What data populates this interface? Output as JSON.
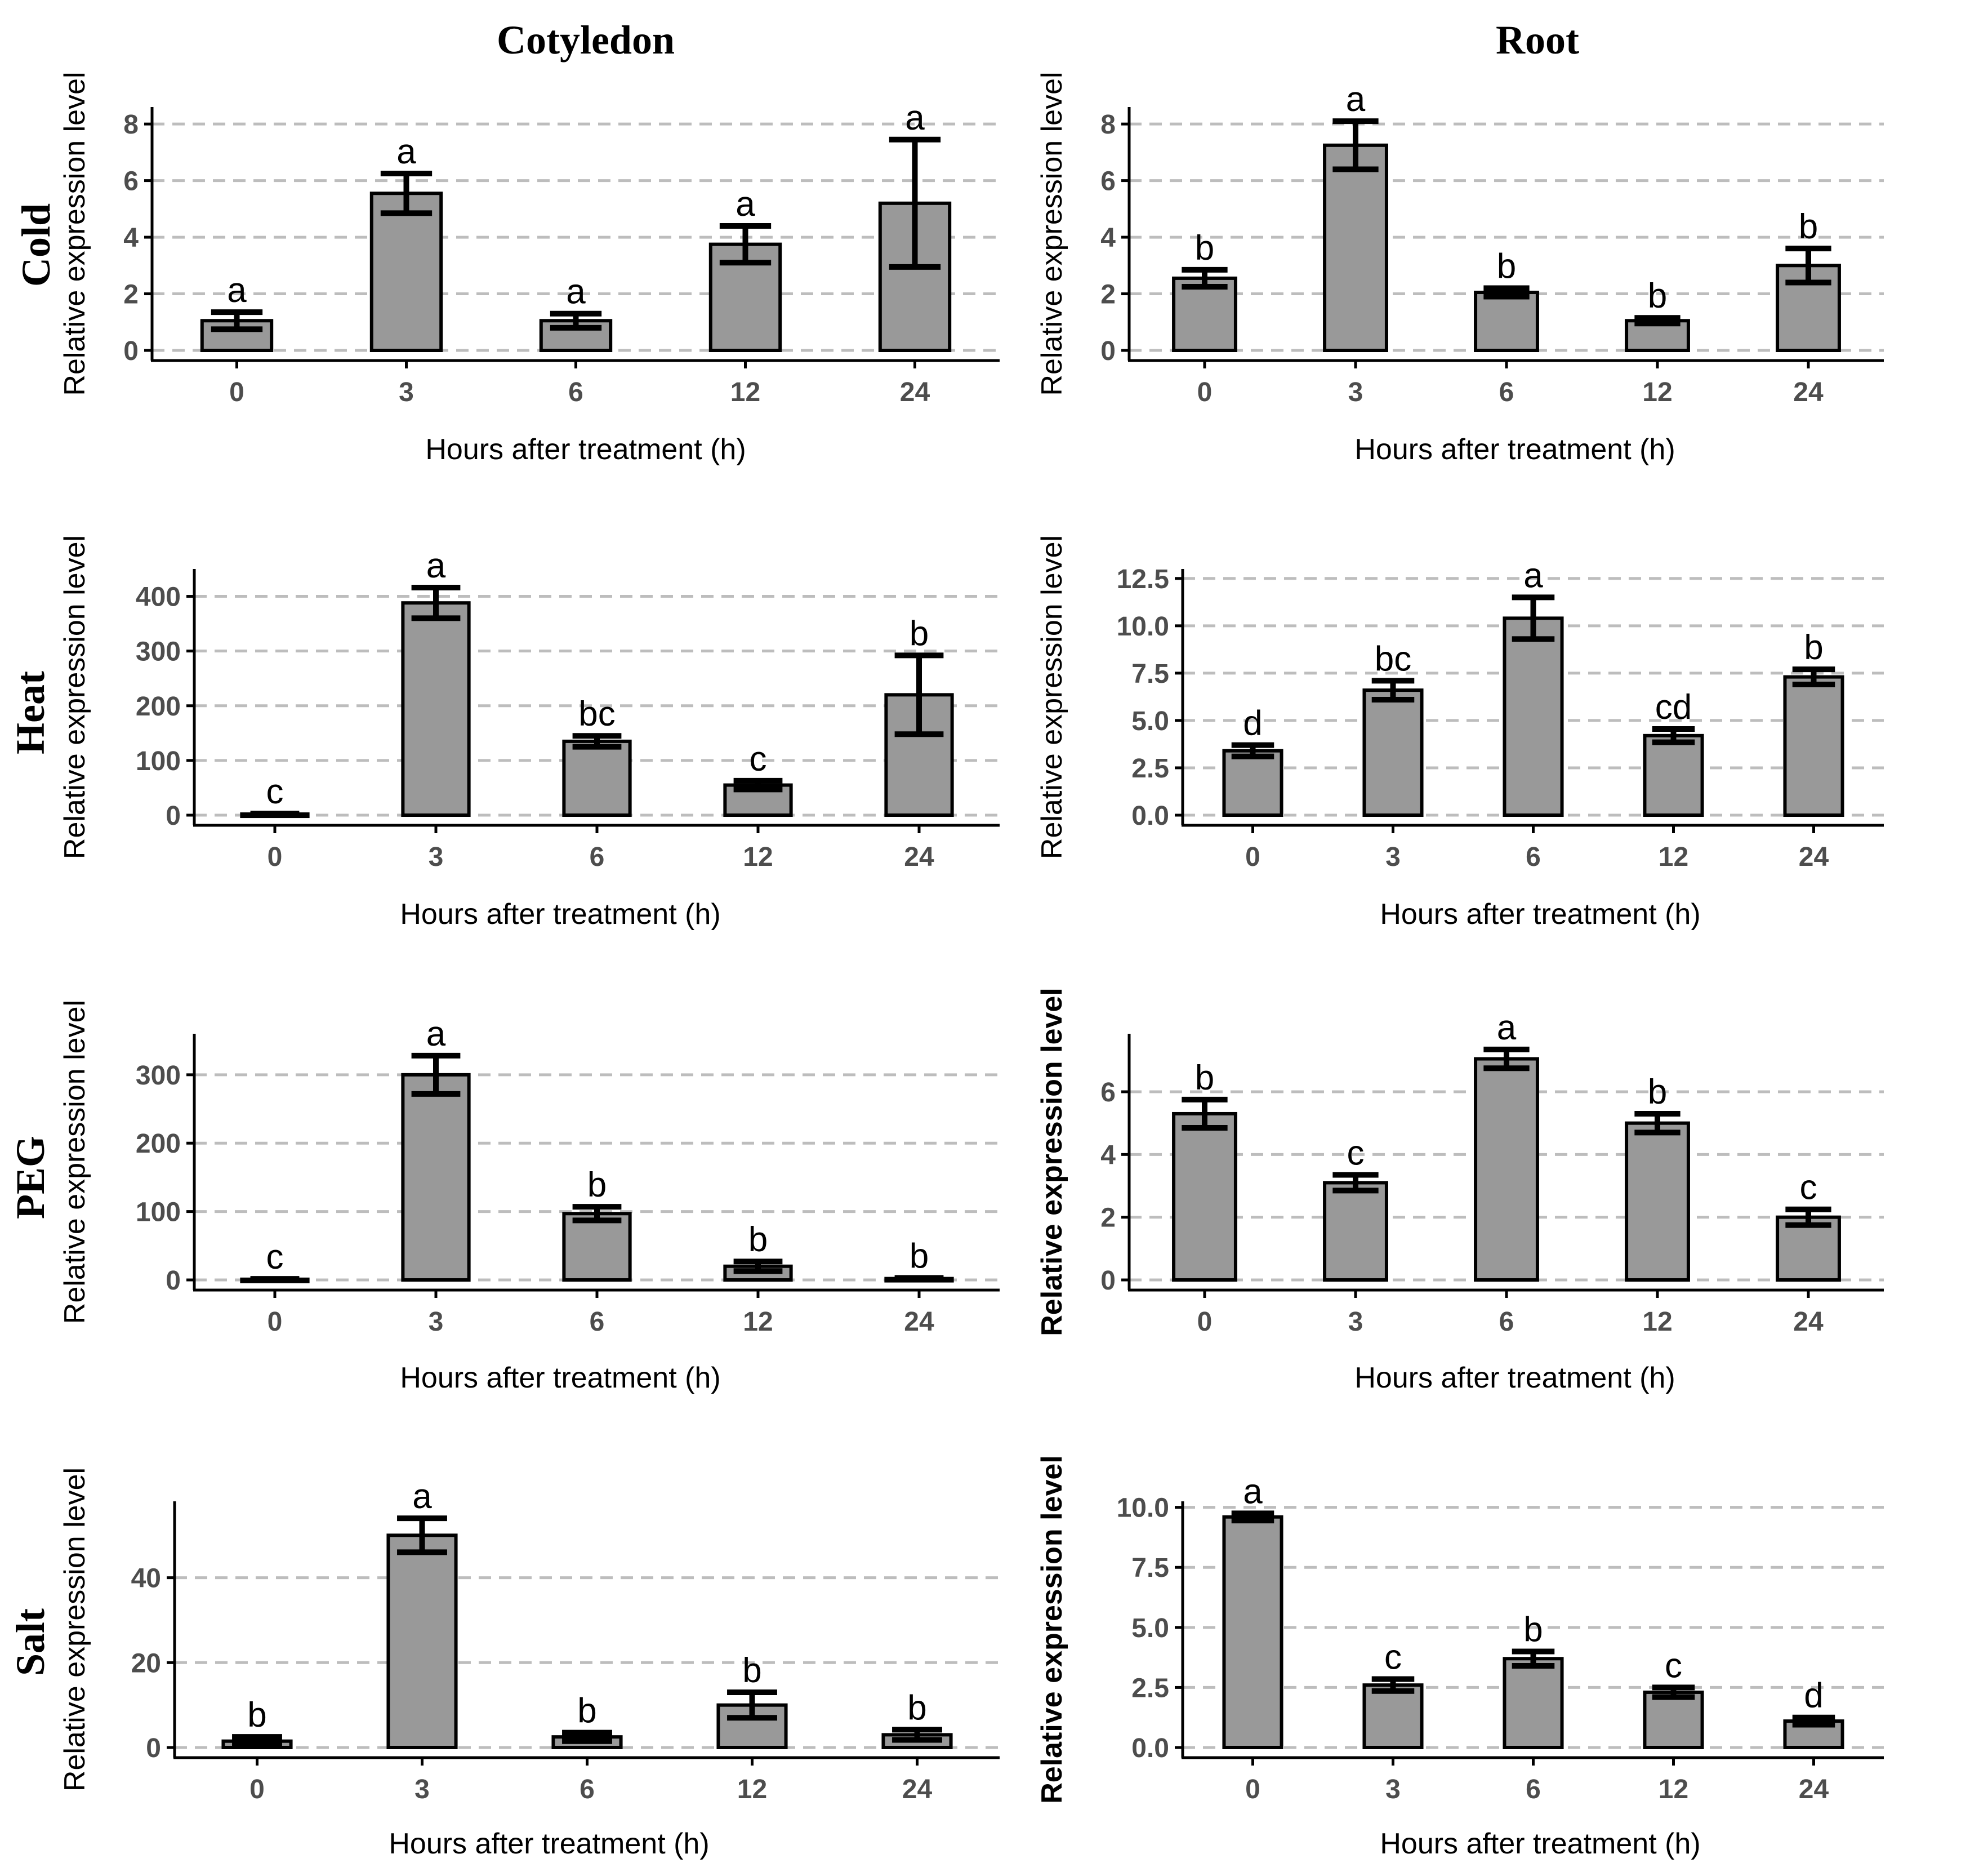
{
  "column_titles": [
    "Cotyledon",
    "Root"
  ],
  "row_titles": [
    "Cold",
    "Heat",
    "PEG",
    "Salt"
  ],
  "chart_data": [
    {
      "type": "bar",
      "panel": "Cold-Cotyledon",
      "categories": [
        "0",
        "3",
        "6",
        "12",
        "24"
      ],
      "values": [
        1.05,
        5.55,
        1.05,
        3.75,
        5.2
      ],
      "errors": [
        0.3,
        0.7,
        0.25,
        0.65,
        2.25
      ],
      "sig": [
        "a",
        "a",
        "a",
        "a",
        "a"
      ],
      "xlabel": "Hours after treatment (h)",
      "ylabel": "Relative expression level",
      "ylim": [
        0,
        8.6
      ],
      "yticks": [
        0,
        2,
        4,
        6,
        8
      ],
      "ytick_labels": [
        "0",
        "2",
        "4",
        "6",
        "8"
      ]
    },
    {
      "type": "bar",
      "panel": "Cold-Root",
      "categories": [
        "0",
        "3",
        "6",
        "12",
        "24"
      ],
      "values": [
        2.55,
        7.25,
        2.05,
        1.05,
        3.0
      ],
      "errors": [
        0.3,
        0.85,
        0.15,
        0.1,
        0.6
      ],
      "sig": [
        "b",
        "a",
        "b",
        "b",
        "b"
      ],
      "xlabel": "Hours after treatment (h)",
      "ylabel": "Relative expression level",
      "ylim": [
        0,
        8.6
      ],
      "yticks": [
        0,
        2,
        4,
        6,
        8
      ],
      "ytick_labels": [
        "0",
        "2",
        "4",
        "6",
        "8"
      ]
    },
    {
      "type": "bar",
      "panel": "Heat-Cotyledon",
      "categories": [
        "0",
        "3",
        "6",
        "12",
        "24"
      ],
      "values": [
        2,
        388,
        135,
        55,
        220
      ],
      "errors": [
        1,
        28,
        10,
        8,
        72
      ],
      "sig": [
        "c",
        "a",
        "bc",
        "c",
        "b"
      ],
      "xlabel": "Hours after treatment (h)",
      "ylabel": "Relative expression level",
      "ylim": [
        0,
        450
      ],
      "yticks": [
        0,
        100,
        200,
        300,
        400
      ],
      "ytick_labels": [
        "0",
        "100",
        "200",
        "300",
        "400"
      ]
    },
    {
      "type": "bar",
      "panel": "Heat-Root",
      "categories": [
        "0",
        "3",
        "6",
        "12",
        "24"
      ],
      "values": [
        3.4,
        6.6,
        10.4,
        4.2,
        7.3
      ],
      "errors": [
        0.3,
        0.5,
        1.1,
        0.35,
        0.4
      ],
      "sig": [
        "d",
        "bc",
        "a",
        "cd",
        "b"
      ],
      "xlabel": "Hours after treatment (h)",
      "ylabel": "Relative expression level",
      "ylim": [
        0,
        13.0
      ],
      "yticks": [
        0,
        2.5,
        5.0,
        7.5,
        10.0,
        12.5
      ],
      "ytick_labels": [
        "0.0",
        "2.5",
        "5.0",
        "7.5",
        "10.0",
        "12.5"
      ]
    },
    {
      "type": "bar",
      "panel": "PEG-Cotyledon",
      "categories": [
        "0",
        "3",
        "6",
        "12",
        "24"
      ],
      "values": [
        1,
        300,
        97,
        20,
        2
      ],
      "errors": [
        0.5,
        28,
        10,
        7,
        1
      ],
      "sig": [
        "c",
        "a",
        "b",
        "b",
        "b"
      ],
      "xlabel": "Hours after treatment (h)",
      "ylabel": "Relative expression level",
      "ylim": [
        0,
        360
      ],
      "yticks": [
        0,
        100,
        200,
        300
      ],
      "ytick_labels": [
        "0",
        "100",
        "200",
        "300"
      ]
    },
    {
      "type": "bar",
      "panel": "PEG-Root",
      "categories": [
        "0",
        "3",
        "6",
        "12",
        "24"
      ],
      "values": [
        5.3,
        3.1,
        7.05,
        5.0,
        2.0
      ],
      "errors": [
        0.45,
        0.25,
        0.3,
        0.3,
        0.25
      ],
      "sig": [
        "b",
        "c",
        "a",
        "b",
        "c"
      ],
      "xlabel": "Hours after treatment (h)",
      "ylabel": "Relative expression level",
      "ylim": [
        0,
        7.85
      ],
      "yticks": [
        0,
        2,
        4,
        6
      ],
      "ytick_labels": [
        "0",
        "2",
        "4",
        "6"
      ]
    },
    {
      "type": "bar",
      "panel": "Salt-Cotyledon",
      "categories": [
        "0",
        "3",
        "6",
        "12",
        "24"
      ],
      "values": [
        1.5,
        50,
        2.5,
        10,
        3
      ],
      "errors": [
        1.0,
        4.0,
        1.0,
        3.0,
        1.2
      ],
      "sig": [
        "b",
        "a",
        "b",
        "b",
        "b"
      ],
      "xlabel": "Hours after treatment (h)",
      "ylabel": "Relative expression level",
      "ylim": [
        0,
        58
      ],
      "yticks": [
        0,
        20,
        40
      ],
      "ytick_labels": [
        "0",
        "20",
        "40"
      ]
    },
    {
      "type": "bar",
      "panel": "Salt-Root",
      "categories": [
        "0",
        "3",
        "6",
        "12",
        "24"
      ],
      "values": [
        9.6,
        2.6,
        3.7,
        2.3,
        1.1
      ],
      "errors": [
        0.15,
        0.25,
        0.3,
        0.2,
        0.15
      ],
      "sig": [
        "a",
        "c",
        "b",
        "c",
        "d"
      ],
      "xlabel": "Hours after treatment (h)",
      "ylabel": "Relative expression level",
      "ylim": [
        0,
        10.25
      ],
      "yticks": [
        0,
        2.5,
        5.0,
        7.5,
        10.0
      ],
      "ytick_labels": [
        "0.0",
        "2.5",
        "5.0",
        "7.5",
        "10.0"
      ]
    }
  ],
  "colors": {
    "bar_fill": "#999999",
    "bar_stroke": "#000000",
    "grid": "#bdbdbd",
    "tick_text": "#4d4d4d"
  }
}
